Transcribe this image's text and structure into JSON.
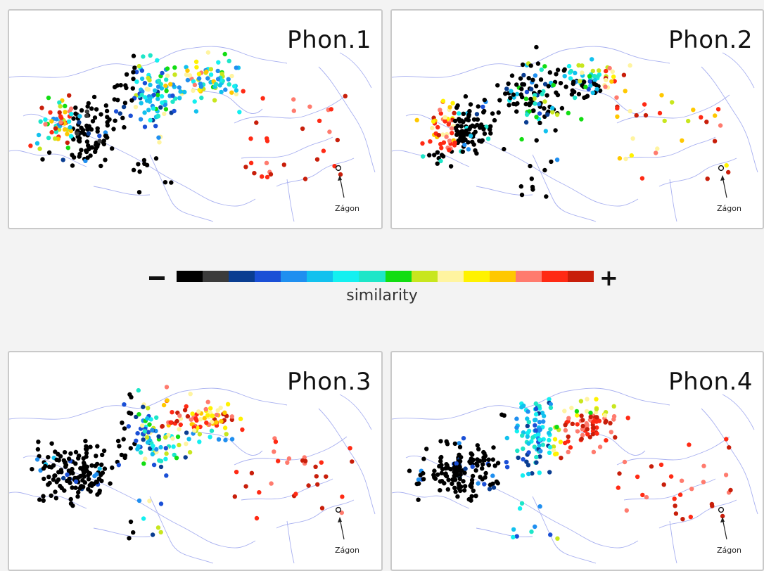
{
  "panels": [
    {
      "title": "Phon.1",
      "scheme": 1
    },
    {
      "title": "Phon.2",
      "scheme": 2
    },
    {
      "title": "Phon.3",
      "scheme": 3
    },
    {
      "title": "Phon.4",
      "scheme": 4
    }
  ],
  "marker_label": "Zágon",
  "legend": {
    "minus_symbol": "–",
    "plus_symbol": "+",
    "label": "similarity",
    "colors": [
      "#000000",
      "#3b3b3b",
      "#0a3d91",
      "#1a4fd6",
      "#1f8ff0",
      "#12c1ee",
      "#14f0f0",
      "#1ee6c8",
      "#12dd12",
      "#c8e61e",
      "#fff4a0",
      "#fff200",
      "#ffc800",
      "#ff7b6e",
      "#ff2a14",
      "#c81e0a"
    ]
  }
}
